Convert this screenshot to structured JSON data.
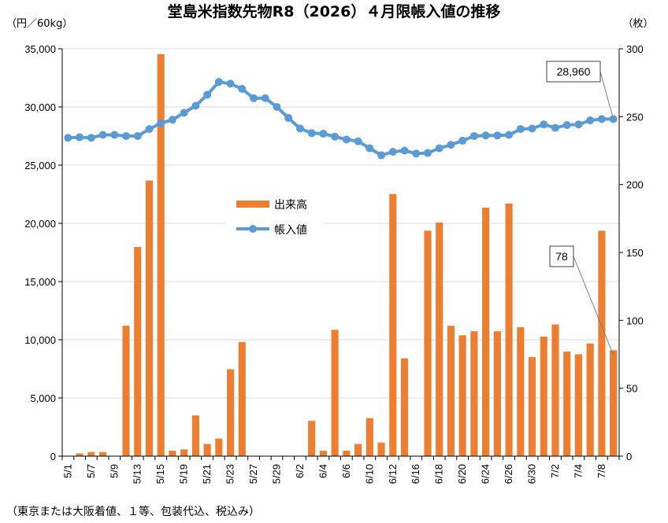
{
  "footnote": "（東京または大阪着値、１等、包装代込、税込み）",
  "chart_data": {
    "type": "bar+line",
    "title": "堂島米指数先物R8（2026）４月限帳入値の推移",
    "left_unit": "（円／60kg）",
    "right_unit": "（枚）",
    "left_ylim": [
      0,
      35000
    ],
    "left_ticks": [
      "0",
      "5,000",
      "10,000",
      "15,000",
      "20,000",
      "25,000",
      "30,000",
      "35,000"
    ],
    "right_ylim": [
      0,
      300
    ],
    "right_ticks": [
      "0",
      "50",
      "100",
      "150",
      "200",
      "250",
      "300"
    ],
    "x_tick_labels": [
      "5/1",
      "5/7",
      "5/9",
      "5/13",
      "5/15",
      "5/19",
      "5/21",
      "5/23",
      "5/27",
      "5/29",
      "6/2",
      "6/4",
      "6/6",
      "6/10",
      "6/12",
      "6/16",
      "6/18",
      "6/20",
      "6/24",
      "6/26",
      "6/30",
      "7/2",
      "7/4",
      "7/8"
    ],
    "grid": true,
    "legend_position": "center-left",
    "series": [
      {
        "name": "出来高",
        "type": "bar",
        "axis": "right",
        "color": "#ED7D31",
        "values": [
          0,
          2,
          3,
          3,
          0,
          96,
          154,
          203,
          296,
          4,
          5,
          30,
          9,
          13,
          64,
          84,
          0,
          0,
          0,
          0,
          0,
          26,
          4,
          93,
          4,
          9,
          28,
          10,
          193,
          72,
          0,
          166,
          172,
          96,
          89,
          92,
          183,
          92,
          186,
          95,
          73,
          88,
          97,
          77,
          75,
          83,
          166,
          78
        ]
      },
      {
        "name": "帳入値",
        "type": "line",
        "axis": "left",
        "color": "#5B9BD5",
        "values": [
          27350,
          27400,
          27350,
          27600,
          27600,
          27500,
          27500,
          28100,
          28600,
          28900,
          29500,
          30100,
          31050,
          32150,
          32000,
          31550,
          30750,
          30750,
          30000,
          29050,
          28150,
          27750,
          27700,
          27450,
          27200,
          27050,
          26450,
          25850,
          26150,
          26250,
          26000,
          26050,
          26450,
          26750,
          27100,
          27500,
          27550,
          27550,
          27600,
          28100,
          28150,
          28500,
          28200,
          28450,
          28500,
          28850,
          28960,
          28960
        ]
      }
    ],
    "annotations": [
      {
        "text": "28,960",
        "series": "帳入値",
        "point_index": 47
      },
      {
        "text": "78",
        "series": "出来高",
        "point_index": 47
      }
    ]
  }
}
